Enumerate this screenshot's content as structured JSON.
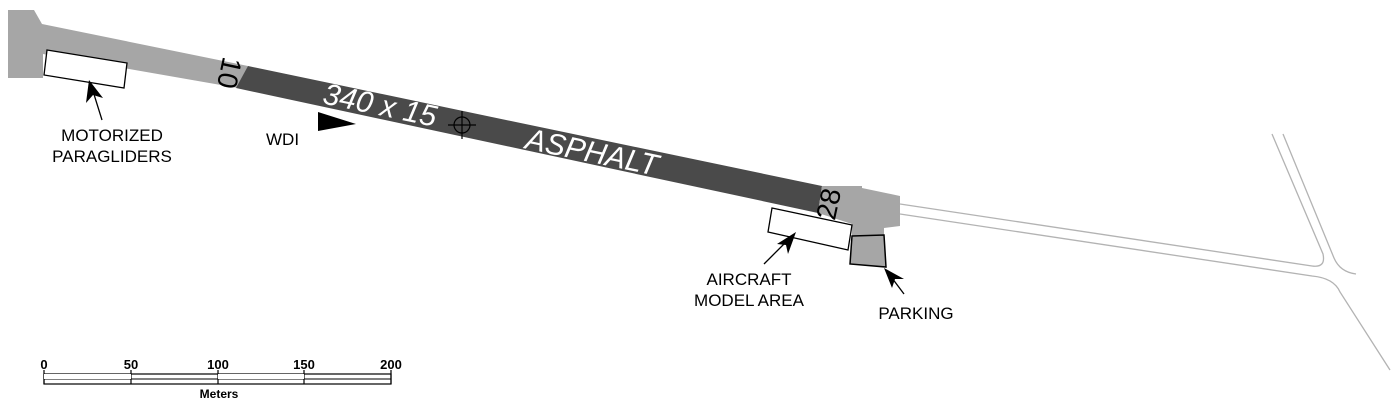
{
  "runway": {
    "dimensions": "340 x 15",
    "surface": "ASPHALT",
    "west_designator": "10",
    "east_designator": "28"
  },
  "labels": {
    "motorized_line1": "MOTORIZED",
    "motorized_line2": "PARAGLIDERS",
    "wdi": "WDI",
    "model_line1": "AIRCRAFT",
    "model_line2": "MODEL AREA",
    "parking": "PARKING"
  },
  "scale_bar": {
    "ticks": [
      "0",
      "50",
      "100",
      "150",
      "200"
    ],
    "unit": "Meters"
  },
  "colors": {
    "runway": "#4a4a4a",
    "apron": "#a6a6a6",
    "road": "#b3b3b3",
    "ink": "#000000"
  }
}
